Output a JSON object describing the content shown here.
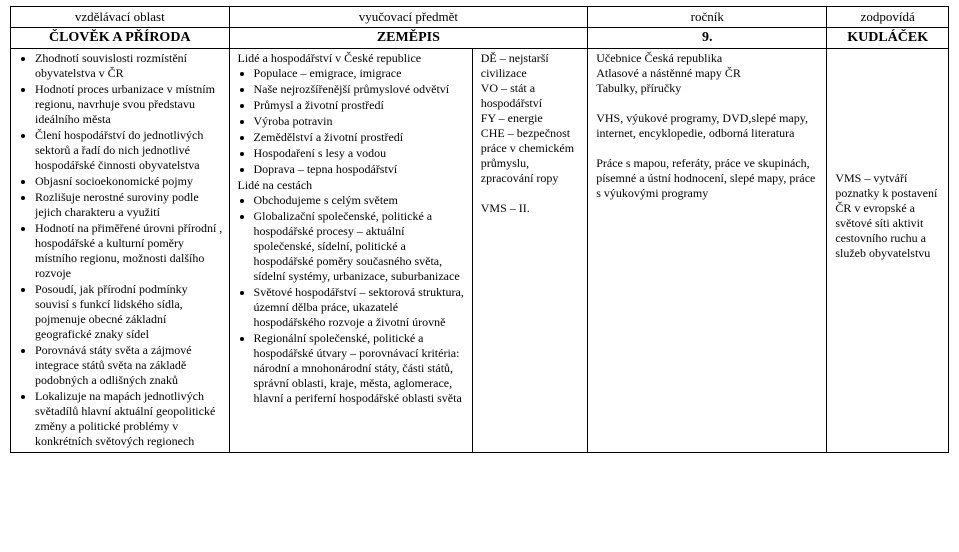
{
  "header": {
    "row1": {
      "c1": "vzdělávací oblast",
      "c2": "vyučovací předmět",
      "c3": "ročník",
      "c4": "zodpovídá"
    },
    "row2": {
      "c1": "ČLOVĚK A PŘÍRODA",
      "c2": "ZEMĚPIS",
      "c3": "9.",
      "c4": "KUDLÁČEK"
    }
  },
  "col1": {
    "items": [
      "Zhodnotí souvislosti rozmístění obyvatelstva v ČR",
      "Hodnotí proces urbanizace v místním regionu, navrhuje svou představu ideálního města",
      "Člení hospodářství do jednotlivých sektorů a řadí do nich jednotlivé hospodářské činnosti obyvatelstva",
      "Objasní socioekonomické pojmy",
      "Rozlišuje nerostné suroviny podle jejich charakteru a využití",
      "Hodnotí na přiměřené úrovni přírodní , hospodářské a kulturní poměry místního regionu, možnosti dalšího rozvoje",
      "Posoudí, jak přírodní podmínky souvisí s funkcí lidského sídla, pojmenuje obecné základní geografické znaky sídel",
      "Porovnává státy světa a zájmové integrace států světa na základě podobných a odlišných znaků",
      "Lokalizuje na mapách jednotlivých světadílů hlavní aktuální geopolitické změny a politické problémy v konkrétních světových regionech"
    ]
  },
  "col2": {
    "heading1": "Lidé a hospodářství v České republice",
    "list1": [
      "Populace – emigrace, imigrace",
      "Naše nejrozšířenější průmyslové odvětví",
      "Průmysl a životní prostředí",
      "Výroba potravin",
      "Zemědělství a životní prostředí",
      "Hospodaření s lesy a vodou",
      "Doprava – tepna hospodářství"
    ],
    "heading2": "Lidé na cestách",
    "list2": [
      "Obchodujeme s celým světem",
      "Globalizační společenské, politické a hospodářské procesy – aktuální společenské, sídelní, politické a hospodářské poměry současného světa, sídelní systémy, urbanizace, suburbanizace",
      "Světové hospodářství – sektorová struktura, územní dělba práce, ukazatelé hospodářského rozvoje a životní úrovně",
      "Regionální společenské, politické a hospodářské útvary – porovnávací kritéria: národní a mnohonárodní státy, části států, správní oblasti, kraje, města, aglomerace, hlavní a periferní hospodářské oblasti světa"
    ]
  },
  "col3": {
    "lines": [
      "DĚ – nejstarší civilizace",
      "VO – stát a hospodářství",
      "FY – energie",
      "CHE – bezpečnost práce v chemickém průmyslu, zpracování ropy",
      "",
      "VMS – II."
    ]
  },
  "col4": {
    "lines": [
      "Učebnice Česká republika",
      "Atlasové a nástěnné mapy ČR",
      "Tabulky, příručky",
      "",
      "VHS, výukové programy, DVD,slepé mapy, internet, encyklopedie, odborná literatura",
      "",
      "Práce s mapou, referáty, práce ve skupinách, písemné a ústní hodnocení, slepé mapy, práce s výukovými programy"
    ]
  },
  "col5": {
    "lines": [
      "",
      "",
      "",
      "",
      "",
      "",
      "",
      "",
      "VMS – vytváří poznatky k postavení ČR v evropské a světové síti aktivit cestovního ruchu a služeb obyvatelstvu"
    ]
  }
}
